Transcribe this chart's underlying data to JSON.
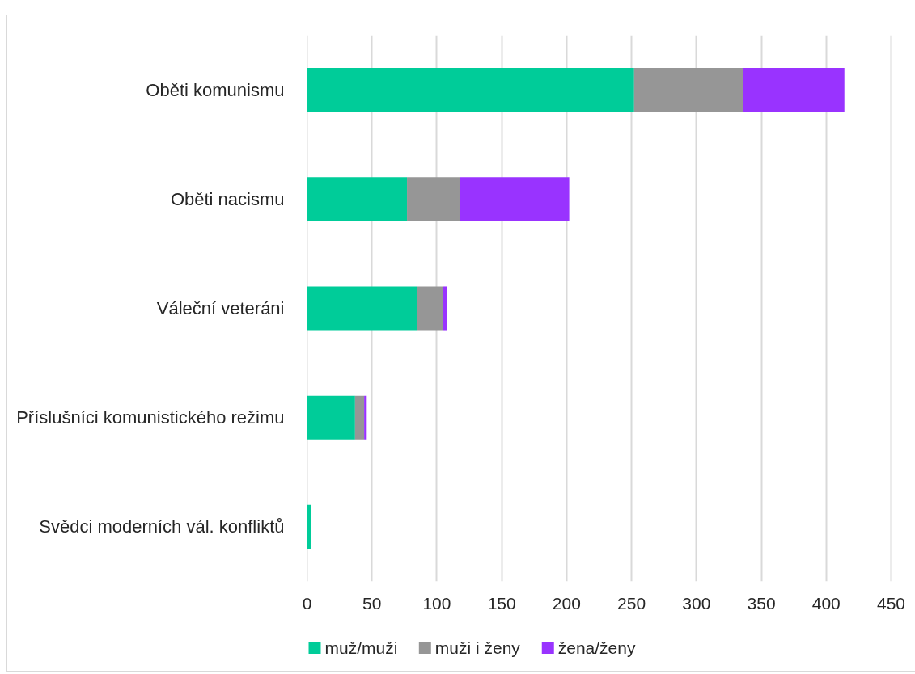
{
  "chart_data": {
    "type": "bar",
    "orientation": "horizontal",
    "stacked": true,
    "categories": [
      "Oběti komunismu",
      "Oběti nacismu",
      "Váleční veteráni",
      "Příslušníci komunistického režimu",
      "Svědci moderních vál. konfliktů"
    ],
    "series": [
      {
        "name": "muž/muži",
        "color": "#00cc99",
        "values": [
          252,
          77,
          85,
          37,
          3
        ]
      },
      {
        "name": "muži i ženy",
        "color": "#969696",
        "values": [
          84,
          41,
          20,
          7,
          0
        ]
      },
      {
        "name": "žena/ženy",
        "color": "#9933ff",
        "values": [
          78,
          84,
          3,
          2,
          0
        ]
      }
    ],
    "xlim": [
      0,
      450
    ],
    "xticks": [
      0,
      50,
      100,
      150,
      200,
      250,
      300,
      350,
      400,
      450
    ],
    "grid": "x",
    "legend": "bottom"
  }
}
